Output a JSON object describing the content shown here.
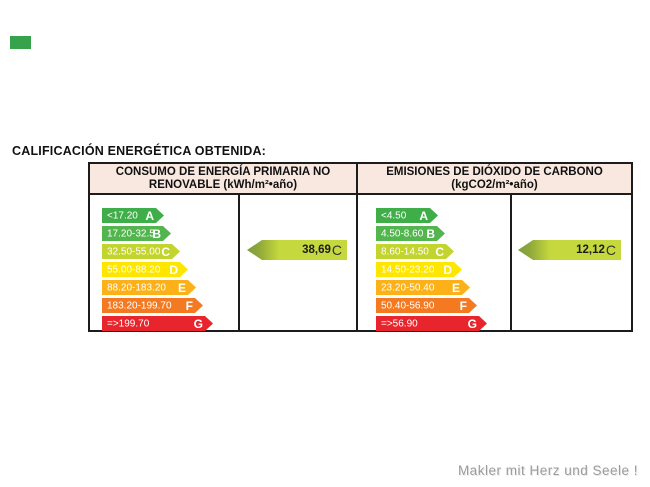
{
  "page": {
    "heading": "CALIFICACIÓN ENERGÉTICA OBTENIDA:",
    "watermark": "Makler mit Herz und Seele !",
    "background_color": "#ffffff",
    "green_mark_color": "#36a34c",
    "table_border_color": "#1c1c1c",
    "header_bg_color": "#f8e8df"
  },
  "panels": [
    {
      "id": "consumo",
      "header_line1": "CONSUMO  DE ENERGÍA PRIMARIA NO",
      "header_line2": "RENOVABLE (kWh/m²•año)",
      "result": {
        "value": "38,69",
        "letter": "C"
      }
    },
    {
      "id": "emisiones",
      "header_line1": "EMISIONES DE DIÓXIDO DE CARBONO",
      "header_line2": "(kgCO2/m²•año)",
      "result": {
        "value": "12,12",
        "letter": "C"
      }
    }
  ],
  "chart_data": [
    {
      "type": "bar",
      "title": "CONSUMO DE ENERGÍA PRIMARIA NO RENOVABLE (kWh/m²•año)",
      "categories": [
        "A",
        "B",
        "C",
        "D",
        "E",
        "F",
        "G"
      ],
      "ranges": [
        "<17.20",
        "17.20-32.5",
        "32.50-55.00",
        "55.00-88.20",
        "88.20-183.20",
        "183.20-199.70",
        "=>199.70"
      ],
      "colors": [
        "#3fae49",
        "#52b54e",
        "#c2d42e",
        "#fee600",
        "#fbb117",
        "#f47a22",
        "#e8252c"
      ],
      "widths": [
        62,
        69,
        78,
        86,
        94,
        101,
        111
      ],
      "obtained_value": "38,69",
      "obtained_letter": "C",
      "result_arrow_color": "#c5d83d"
    },
    {
      "type": "bar",
      "title": "EMISIONES DE DIÓXIDO DE CARBONO (kgCO2/m²•año)",
      "categories": [
        "A",
        "B",
        "C",
        "D",
        "E",
        "F",
        "G"
      ],
      "ranges": [
        "<4.50",
        "4.50-8.60",
        "8.60-14.50",
        "14.50-23.20",
        "23.20-50.40",
        "50.40-56.90",
        "=>56.90"
      ],
      "colors": [
        "#3fae49",
        "#52b54e",
        "#c2d42e",
        "#fee600",
        "#fbb117",
        "#f47a22",
        "#e8252c"
      ],
      "widths": [
        62,
        69,
        78,
        86,
        94,
        101,
        111
      ],
      "obtained_value": "12,12",
      "obtained_letter": "C",
      "result_arrow_color": "#c5d83d"
    }
  ]
}
